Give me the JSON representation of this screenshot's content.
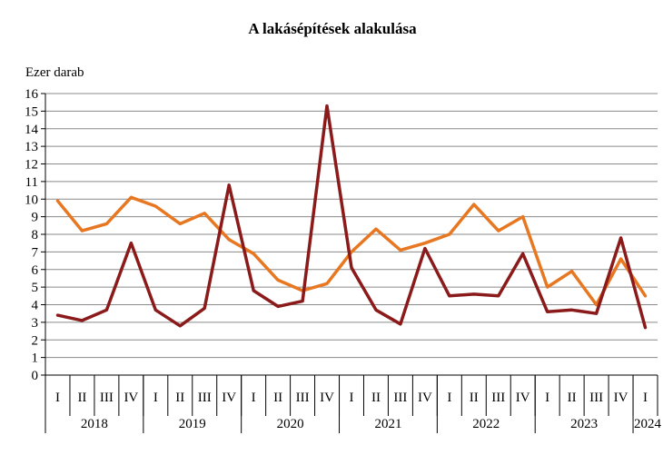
{
  "chart_data": {
    "type": "line",
    "title": "A lakásépítések alakulása",
    "ylabel": "Ezer darab",
    "xlabel": "",
    "ylim": [
      0,
      16
    ],
    "yticks": [
      0,
      1,
      2,
      3,
      4,
      5,
      6,
      7,
      8,
      9,
      10,
      11,
      12,
      13,
      14,
      15,
      16
    ],
    "grid": true,
    "legend": "none",
    "categories": [
      "I",
      "II",
      "III",
      "IV",
      "I",
      "II",
      "III",
      "IV",
      "I",
      "II",
      "III",
      "IV",
      "I",
      "II",
      "III",
      "IV",
      "I",
      "II",
      "III",
      "IV",
      "I",
      "II",
      "III",
      "IV",
      "I"
    ],
    "year_groups": [
      {
        "label": "2018",
        "count": 4
      },
      {
        "label": "2019",
        "count": 4
      },
      {
        "label": "2020",
        "count": 4
      },
      {
        "label": "2021",
        "count": 4
      },
      {
        "label": "2022",
        "count": 4
      },
      {
        "label": "2023",
        "count": 4
      },
      {
        "label": "2024",
        "count": 1
      }
    ],
    "series": [
      {
        "color": "#E87722",
        "values": [
          9.9,
          8.2,
          8.6,
          10.1,
          9.6,
          8.6,
          9.2,
          7.7,
          6.9,
          5.4,
          4.8,
          5.2,
          7.0,
          8.3,
          7.1,
          7.5,
          8.0,
          9.7,
          8.2,
          9.0,
          5.0,
          5.9,
          4.0,
          6.6,
          4.5
        ]
      },
      {
        "color": "#8B1A1A",
        "values": [
          3.4,
          3.1,
          3.7,
          7.5,
          3.7,
          2.8,
          3.8,
          10.8,
          4.8,
          3.9,
          4.2,
          15.3,
          6.1,
          3.7,
          2.9,
          7.2,
          4.5,
          4.6,
          4.5,
          6.9,
          3.6,
          3.7,
          3.5,
          7.8,
          2.7
        ]
      }
    ]
  }
}
